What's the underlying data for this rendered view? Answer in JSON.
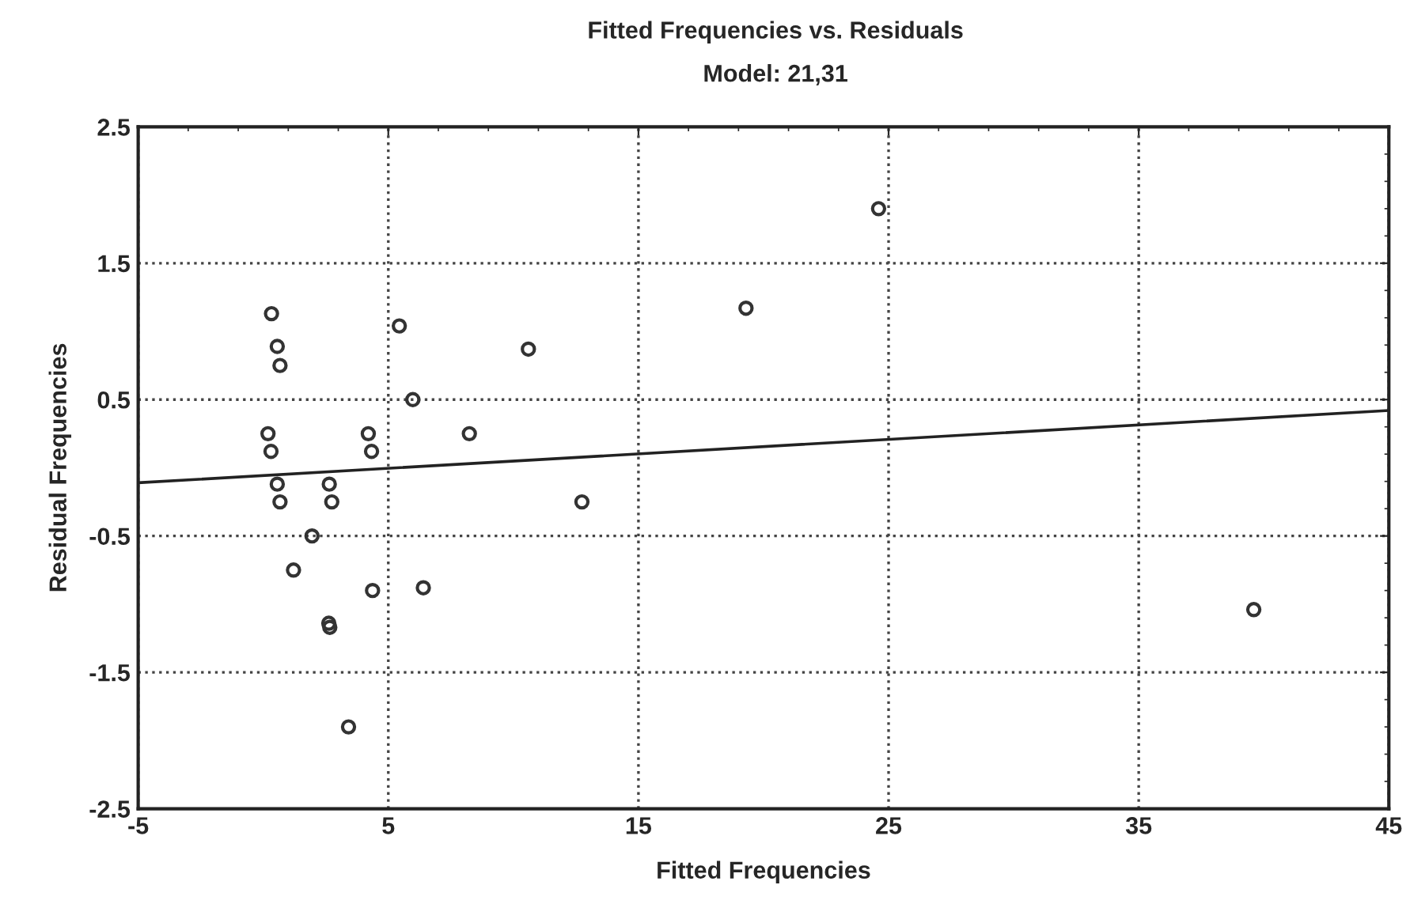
{
  "chart_data": {
    "type": "scatter",
    "title": "Fitted Frequencies vs. Residuals",
    "subtitle": "Model: 21,31",
    "xlabel": "Fitted Frequencies",
    "ylabel": "Residual Frequencies",
    "xlim": [
      -5,
      45
    ],
    "xticks": [
      -5,
      5,
      15,
      25,
      35,
      45
    ],
    "ylim": [
      -2.5,
      2.5
    ],
    "yticks": [
      -2.5,
      -1.5,
      -0.5,
      0.5,
      1.5,
      2.5
    ],
    "grid": true,
    "series": [
      {
        "marker": "circle",
        "color": "#333333",
        "x": [
          0.33,
          0.56,
          0.67,
          5.44,
          10.6,
          5.98,
          0.19,
          0.31,
          4.2,
          4.33,
          8.24,
          0.56,
          0.67,
          2.64,
          2.74,
          12.74,
          1.95,
          1.21,
          4.37,
          6.4,
          2.62,
          2.66,
          3.41,
          24.6,
          19.3,
          39.6
        ],
        "values": [
          1.13,
          0.89,
          0.75,
          1.04,
          0.87,
          0.5,
          0.25,
          0.12,
          0.25,
          0.12,
          0.25,
          -0.12,
          -0.25,
          -0.12,
          -0.25,
          -0.25,
          -0.5,
          -0.75,
          -0.9,
          -0.88,
          -1.14,
          -1.17,
          -1.9,
          1.9,
          1.17,
          -1.04
        ]
      },
      {
        "type": "line",
        "color": "#222222",
        "x": [
          -5,
          45
        ],
        "values": [
          -0.11,
          0.42
        ]
      }
    ]
  }
}
